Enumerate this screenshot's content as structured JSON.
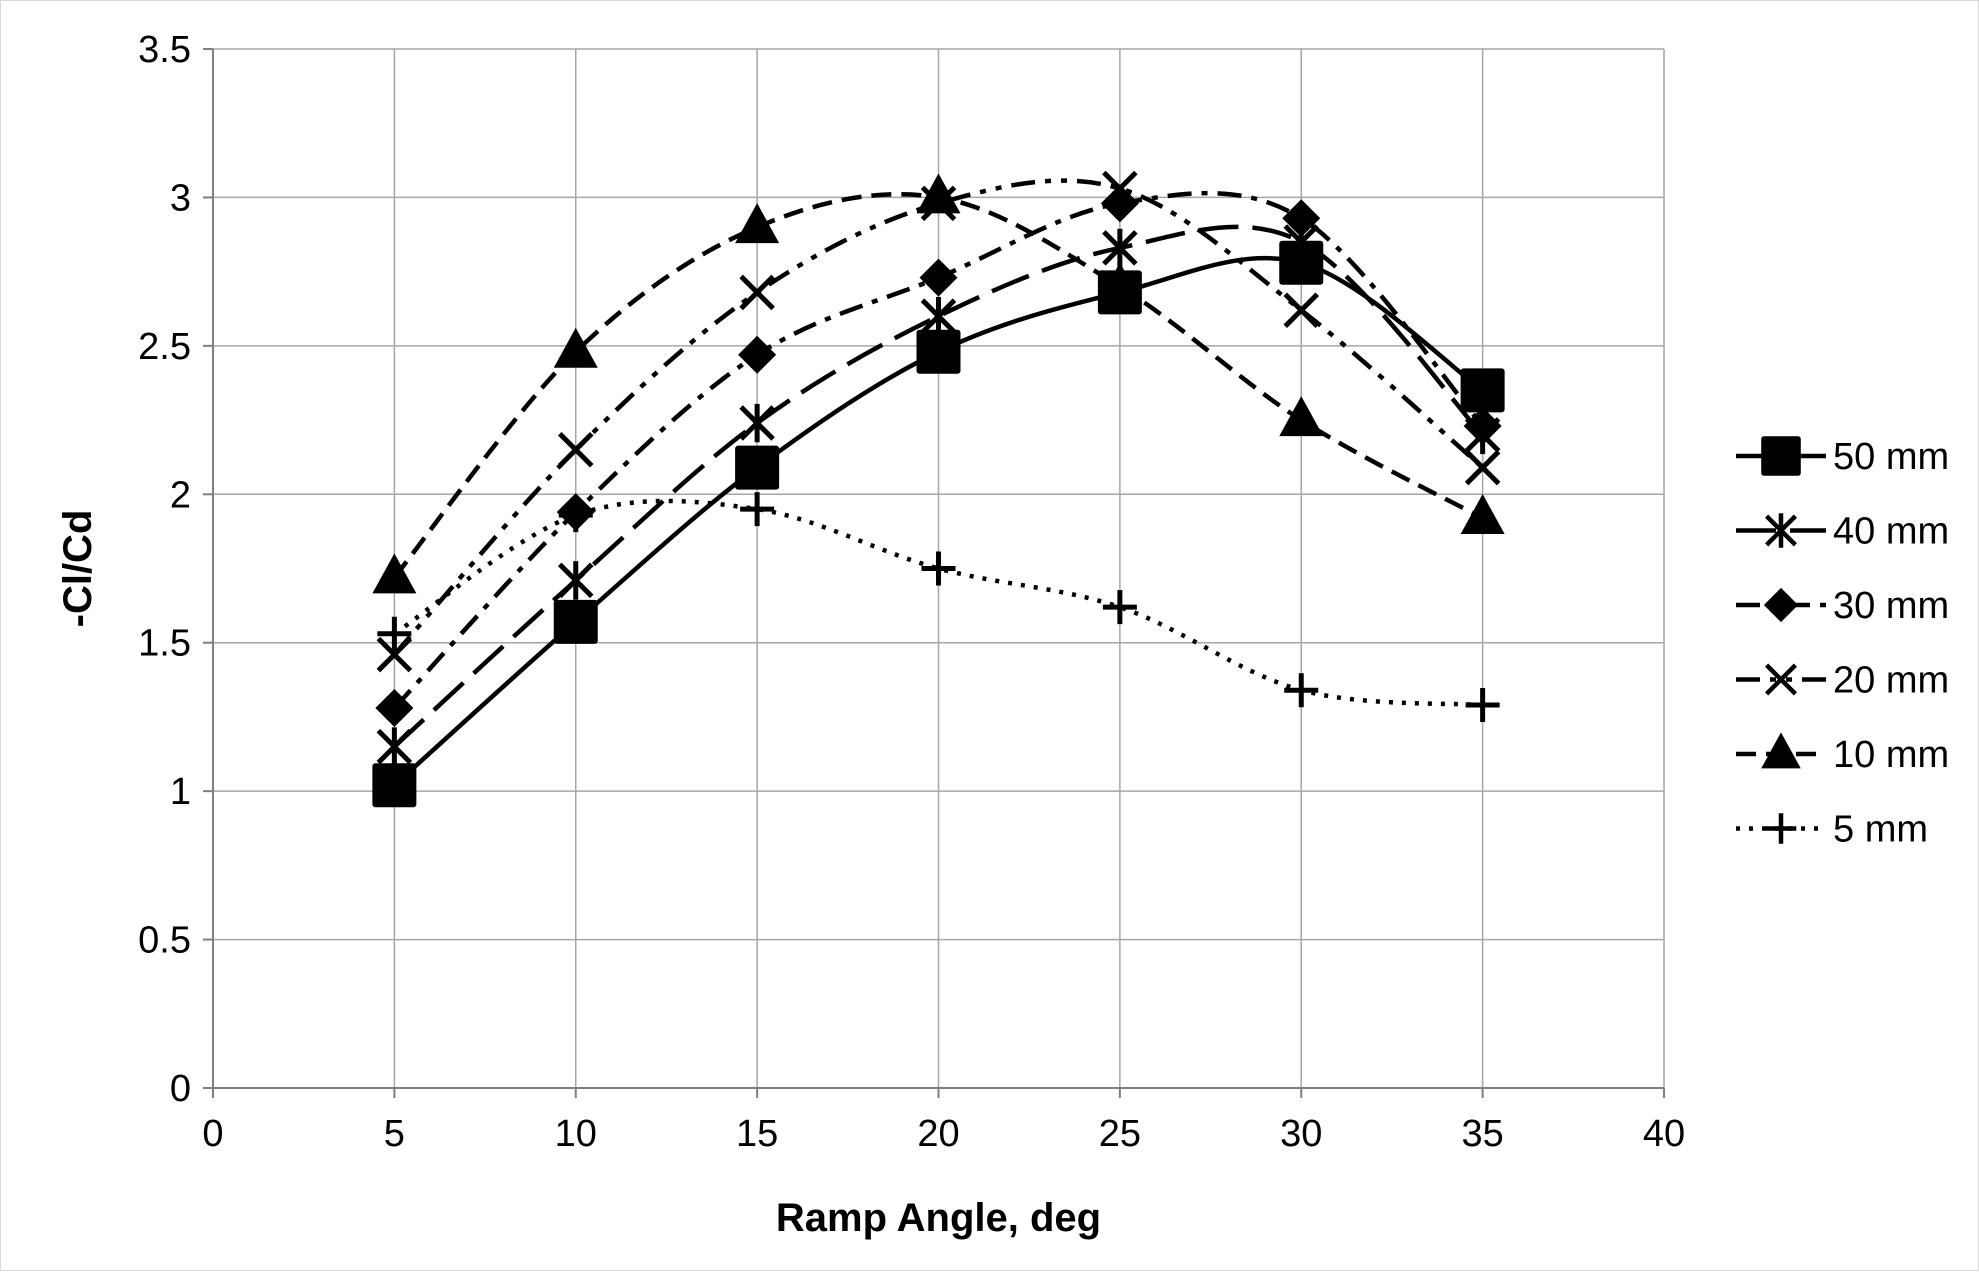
{
  "chart_data": {
    "type": "line",
    "title": "",
    "xlabel": "Ramp Angle, deg",
    "ylabel": "-Cl/Cd",
    "xlim": [
      0,
      40
    ],
    "ylim": [
      0,
      3.5
    ],
    "x_ticks": [
      "0",
      "5",
      "10",
      "15",
      "20",
      "25",
      "30",
      "35",
      "40"
    ],
    "y_ticks": [
      "0",
      "0.5",
      "1",
      "1.5",
      "2",
      "2.5",
      "3",
      "3.5"
    ],
    "grid": true,
    "legend_position": "right",
    "smoothed_lines": true,
    "series": [
      {
        "name": "50 mm",
        "marker": "square",
        "dash": "solid",
        "x": [
          5,
          10,
          15,
          20,
          25,
          30,
          35
        ],
        "y": [
          1.02,
          1.57,
          2.09,
          2.48,
          2.68,
          2.78,
          2.35
        ]
      },
      {
        "name": "40 mm",
        "marker": "asterisk",
        "dash": "long-dash",
        "x": [
          5,
          10,
          15,
          20,
          25,
          30,
          35
        ],
        "y": [
          1.15,
          1.71,
          2.24,
          2.6,
          2.83,
          2.85,
          2.2
        ]
      },
      {
        "name": "30 mm",
        "marker": "diamond",
        "dash": "dash-dot",
        "x": [
          5,
          10,
          15,
          20,
          25,
          30,
          35
        ],
        "y": [
          1.28,
          1.94,
          2.47,
          2.73,
          2.98,
          2.93,
          2.23
        ]
      },
      {
        "name": "20 mm",
        "marker": "x",
        "dash": "dash-dot-dot",
        "x": [
          5,
          10,
          15,
          20,
          25,
          30,
          35
        ],
        "y": [
          1.46,
          2.15,
          2.68,
          2.98,
          3.03,
          2.62,
          2.09
        ]
      },
      {
        "name": "10 mm",
        "marker": "triangle",
        "dash": "dash",
        "x": [
          5,
          10,
          15,
          20,
          25,
          30,
          35
        ],
        "y": [
          1.72,
          2.48,
          2.9,
          3.0,
          2.7,
          2.25,
          1.92
        ]
      },
      {
        "name": "5 mm",
        "marker": "plus",
        "dash": "dot",
        "x": [
          5,
          10,
          15,
          20,
          25,
          30,
          35
        ],
        "y": [
          1.53,
          1.93,
          1.95,
          1.75,
          1.62,
          1.34,
          1.29
        ]
      }
    ]
  }
}
